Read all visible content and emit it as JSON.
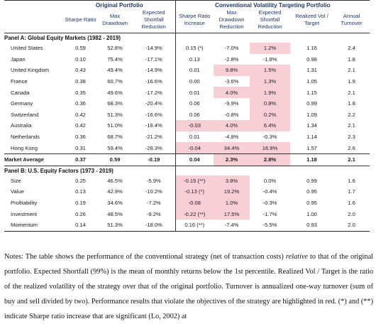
{
  "header": {
    "group_original": "Original Portfolio",
    "group_cvt": "Conventional Volatility Targeting Portfolio",
    "columns": [
      "",
      "Sharpe Ratio",
      "Max Drawdown",
      "Expected Shortfall Reduction",
      "Sharpe Ratio Increase",
      "Max Drawdown Reduction",
      "Expected Shortfall Reduction",
      "Realized Vol / Target",
      "Annual Turnover"
    ]
  },
  "panelA": {
    "title": "Panel A: Global Equity Markets (1982 - 2019)",
    "rows": [
      {
        "name": "United States",
        "v": [
          "0.59",
          "52.8%",
          "-14.9%",
          "0.15 (*)",
          "-7.0%",
          "1.2%",
          "1.16",
          "2.4"
        ],
        "hl": [
          false,
          false,
          false,
          false,
          false,
          true,
          false,
          false
        ]
      },
      {
        "name": "Japan",
        "v": [
          "0.10",
          "75.4%",
          "-17.1%",
          "0.13",
          "-2.8%",
          "-1.8%",
          "0.98",
          "1.8"
        ],
        "hl": [
          false,
          false,
          false,
          false,
          false,
          false,
          false,
          false
        ]
      },
      {
        "name": "United Kingdom",
        "v": [
          "0.43",
          "49.4%",
          "-14.9%",
          "0.01",
          "9.8%",
          "1.5%",
          "1.31",
          "2.1"
        ],
        "hl": [
          false,
          false,
          false,
          false,
          true,
          true,
          false,
          false
        ]
      },
      {
        "name": "France",
        "v": [
          "0.38",
          "60.7%",
          "-16.6%",
          "0.00",
          "-3.6%",
          "1.3%",
          "1.05",
          "1.9"
        ],
        "hl": [
          false,
          false,
          false,
          false,
          false,
          true,
          false,
          false
        ]
      },
      {
        "name": "Canada",
        "v": [
          "0.35",
          "49.6%",
          "-17.2%",
          "0.01",
          "4.0%",
          "1.9%",
          "1.15",
          "2.1"
        ],
        "hl": [
          false,
          false,
          false,
          false,
          true,
          true,
          false,
          false
        ]
      },
      {
        "name": "Germany",
        "v": [
          "0.36",
          "68.3%",
          "-20.4%",
          "0.06",
          "-9.9%",
          "0.8%",
          "0.99",
          "1.8"
        ],
        "hl": [
          false,
          false,
          false,
          false,
          false,
          true,
          false,
          false
        ]
      },
      {
        "name": "Switzerland",
        "v": [
          "0.42",
          "51.3%",
          "-16.6%",
          "0.06",
          "-0.8%",
          "0.2%",
          "1.09",
          "2.2"
        ],
        "hl": [
          false,
          false,
          false,
          false,
          false,
          true,
          false,
          false
        ]
      },
      {
        "name": "Australia",
        "v": [
          "0.42",
          "51.0%",
          "-18.4%",
          "-0.03",
          "4.0%",
          "6.4%",
          "1.34",
          "2.1"
        ],
        "hl": [
          false,
          false,
          false,
          true,
          true,
          true,
          false,
          false
        ]
      },
      {
        "name": "Netherlands",
        "v": [
          "0.36",
          "68.7%",
          "-21.2%",
          "0.01",
          "-4.8%",
          "-0.3%",
          "1.14",
          "2.3"
        ],
        "hl": [
          false,
          false,
          false,
          false,
          false,
          false,
          false,
          false
        ]
      },
      {
        "name": "Hong Kong",
        "v": [
          "0.31",
          "59.4%",
          "-28.3%",
          "-0.04",
          "34.4%",
          "16.9%",
          "1.57",
          "2.6"
        ],
        "hl": [
          false,
          false,
          false,
          true,
          true,
          true,
          false,
          false
        ]
      }
    ],
    "average": {
      "name": "Market Average",
      "v": [
        "0.37",
        "0.59",
        "-0.19",
        "0.04",
        "2.3%",
        "2.8%",
        "1.18",
        "2.1"
      ],
      "hl": [
        false,
        false,
        false,
        false,
        true,
        true,
        false,
        false
      ]
    }
  },
  "panelB": {
    "title": "Panel B: U.S. Equity Factors (1973 - 2019)",
    "rows": [
      {
        "name": "Size",
        "v": [
          "0.25",
          "46.5%",
          "-5.9%",
          "-0.15 (**)",
          "3.8%",
          "0.0%",
          "0.99",
          "1.6"
        ],
        "hl": [
          false,
          false,
          false,
          true,
          true,
          false,
          false,
          false
        ]
      },
      {
        "name": "Value",
        "v": [
          "0.13",
          "42.9%",
          "-10.2%",
          "-0.13 (*)",
          "19.2%",
          "-0.4%",
          "0.95",
          "1.7"
        ],
        "hl": [
          false,
          false,
          false,
          true,
          true,
          false,
          false,
          false
        ]
      },
      {
        "name": "Profitability",
        "v": [
          "0.19",
          "34.6%",
          "-7.2%",
          "-0.08",
          "1.0%",
          "-0.3%",
          "0.95",
          "1.6"
        ],
        "hl": [
          false,
          false,
          false,
          true,
          true,
          false,
          false,
          false
        ]
      },
      {
        "name": "Investment",
        "v": [
          "0.26",
          "48.5%",
          "-9.2%",
          "-0.22 (**)",
          "17.5%",
          "-1.7%",
          "1.00",
          "2.0"
        ],
        "hl": [
          false,
          false,
          false,
          true,
          true,
          false,
          false,
          false
        ]
      },
      {
        "name": "Momentum",
        "v": [
          "0.14",
          "51.3%",
          "-18.0%",
          "0.16 (**)",
          "-7.4%",
          "-5.5%",
          "0.93",
          "2.0"
        ],
        "hl": [
          false,
          false,
          false,
          false,
          false,
          false,
          false,
          false
        ]
      }
    ]
  },
  "notes": "Notes: The table shows the performance of the conventional strategy (net of transaction costs) relative to that of the original portfolio. Expected Shortfall (99%) is the mean of monthly returns below the 1st percentile. Realized Vol / Target is the ratio of the realized volatility of the strategy over that of the original portfolio. Turnover is annualized one-way turnover (sum of buy and sell divided by two). Performance results that violate the objectives of the strategy are highlighted in red. (*) and (**) indicate Sharpe ratio increase that are significant (Lo, 2002) at"
}
